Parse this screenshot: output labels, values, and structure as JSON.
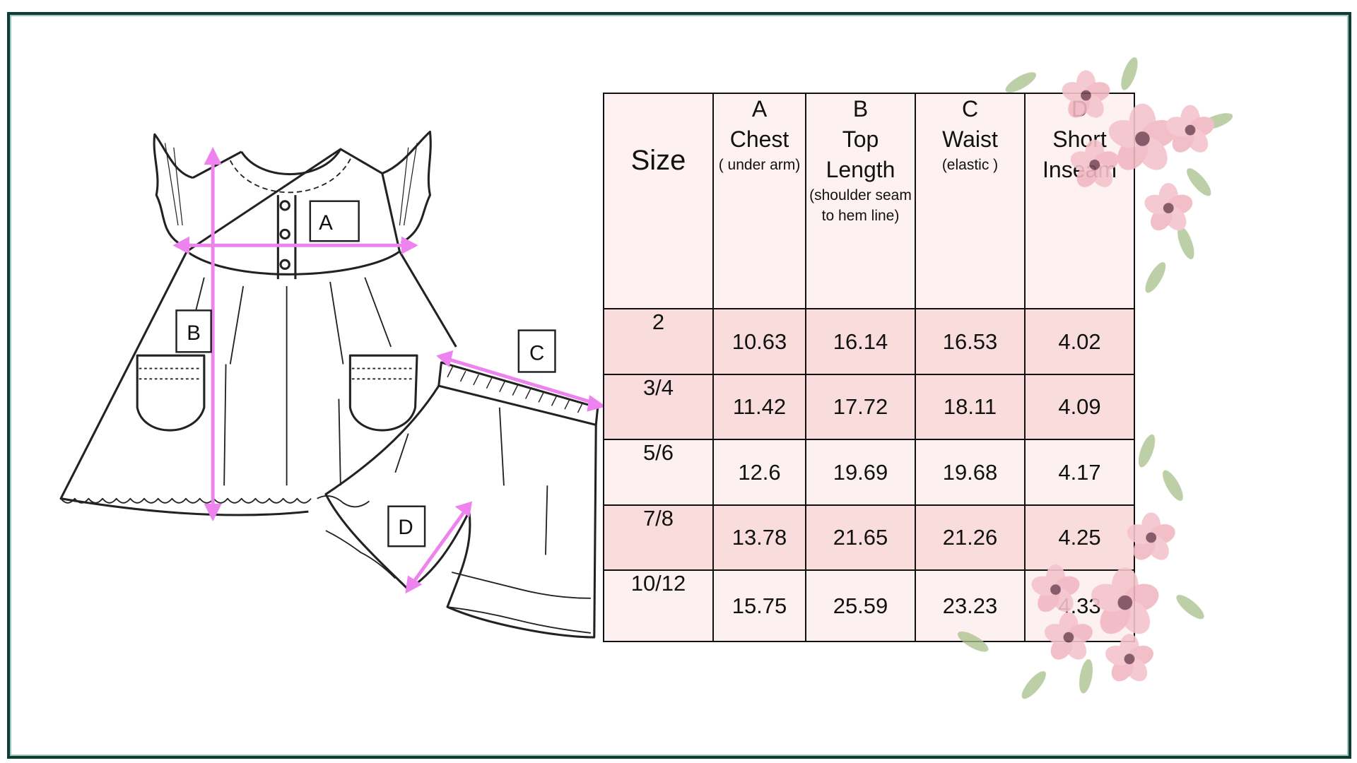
{
  "labels": {
    "a": "A",
    "b": "B",
    "c": "C",
    "d": "D"
  },
  "table": {
    "headers": [
      {
        "main": "Size"
      },
      {
        "letter": "A",
        "main": "Chest",
        "sub": "( under arm)"
      },
      {
        "letter": "B",
        "main": "Top Length",
        "sub": "(shoulder seam to hem line)"
      },
      {
        "letter": "C",
        "main": "Waist",
        "sub": "(elastic )"
      },
      {
        "letter": "D",
        "main": "Short Inseam",
        "sub": ""
      }
    ],
    "rows": [
      [
        "2",
        "10.63",
        "16.14",
        "16.53",
        "4.02"
      ],
      [
        "3/4",
        "11.42",
        "17.72",
        "18.11",
        "4.09"
      ],
      [
        "5/6",
        "12.6",
        "19.69",
        "19.68",
        "4.17"
      ],
      [
        "7/8",
        "13.78",
        "21.65",
        "21.26",
        "4.25"
      ],
      [
        "10/12",
        "15.75",
        "25.59",
        "23.23",
        "4.33"
      ]
    ]
  },
  "colors": {
    "border": "#0f3d33",
    "arrow": "#ee82ee",
    "row_pink": "#f9dddd",
    "row_light": "#fdf0f0"
  }
}
